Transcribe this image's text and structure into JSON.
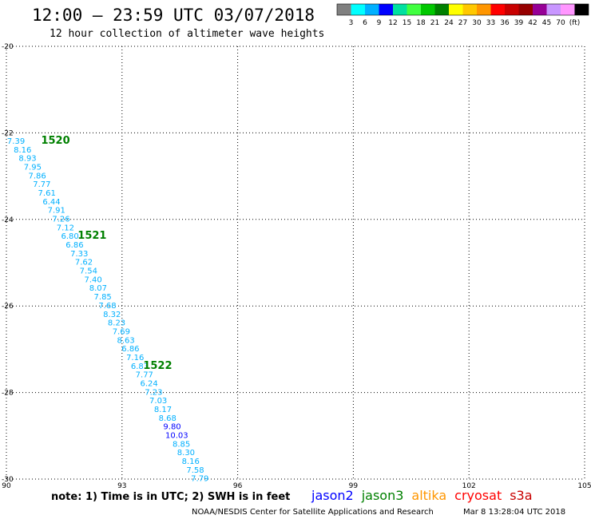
{
  "header": {
    "title": "12:00 – 23:59 UTC 03/07/2018",
    "subtitle": "12 hour collection of altimeter wave heights"
  },
  "colorbar": {
    "colors": [
      "#808080",
      "#00ffff",
      "#00b0ff",
      "#0000ff",
      "#00e0a0",
      "#40ff40",
      "#00c800",
      "#008000",
      "#ffff00",
      "#ffc800",
      "#ff9600",
      "#ff0000",
      "#c80000",
      "#960000",
      "#960096",
      "#c896ff",
      "#ff96ff",
      "#000000"
    ],
    "labels": [
      "3",
      "6",
      "9",
      "12",
      "15",
      "18",
      "21",
      "24",
      "27",
      "30",
      "33",
      "36",
      "39",
      "42",
      "45",
      "70",
      "(ft)"
    ]
  },
  "chart_data": {
    "type": "scatter",
    "title": "12:00 – 23:59 UTC 03/07/2018",
    "subtitle": "12 hour collection of altimeter wave heights",
    "xlim": [
      90,
      105
    ],
    "ylim": [
      -30,
      -20
    ],
    "x_ticks": [
      "90",
      "93",
      "96",
      "99",
      "102",
      "105"
    ],
    "y_ticks": [
      "-20",
      "-22",
      "-24",
      "-26",
      "-28",
      "-30"
    ],
    "grid": true,
    "points": [
      {
        "lon": 90.25,
        "lat": -22.25,
        "value": "7.39",
        "color": "#00b0ff"
      },
      {
        "lon": 90.42,
        "lat": -22.45,
        "value": "8.16",
        "color": "#00b0ff"
      },
      {
        "lon": 90.55,
        "lat": -22.65,
        "value": "8.93",
        "color": "#00b0ff"
      },
      {
        "lon": 90.68,
        "lat": -22.85,
        "value": "7.95",
        "color": "#00b0ff"
      },
      {
        "lon": 90.8,
        "lat": -23.05,
        "value": "7.86",
        "color": "#00b0ff"
      },
      {
        "lon": 90.92,
        "lat": -23.25,
        "value": "7.77",
        "color": "#00b0ff"
      },
      {
        "lon": 91.05,
        "lat": -23.45,
        "value": "7.61",
        "color": "#00b0ff"
      },
      {
        "lon": 91.17,
        "lat": -23.65,
        "value": "6.44",
        "color": "#00b0ff"
      },
      {
        "lon": 91.3,
        "lat": -23.85,
        "value": "7.91",
        "color": "#00b0ff"
      },
      {
        "lon": 91.42,
        "lat": -24.05,
        "value": "7.26",
        "color": "#00b0ff"
      },
      {
        "lon": 91.53,
        "lat": -24.25,
        "value": "7.12",
        "color": "#00b0ff"
      },
      {
        "lon": 91.65,
        "lat": -24.45,
        "value": "6.80",
        "color": "#00b0ff"
      },
      {
        "lon": 91.77,
        "lat": -24.65,
        "value": "6.86",
        "color": "#00b0ff"
      },
      {
        "lon": 91.89,
        "lat": -24.85,
        "value": "7.33",
        "color": "#00b0ff"
      },
      {
        "lon": 92.01,
        "lat": -25.05,
        "value": "7.62",
        "color": "#00b0ff"
      },
      {
        "lon": 92.13,
        "lat": -25.25,
        "value": "7.54",
        "color": "#00b0ff"
      },
      {
        "lon": 92.25,
        "lat": -25.45,
        "value": "7.40",
        "color": "#00b0ff"
      },
      {
        "lon": 92.38,
        "lat": -25.65,
        "value": "8.07",
        "color": "#00b0ff"
      },
      {
        "lon": 92.5,
        "lat": -25.85,
        "value": "7.85",
        "color": "#00b0ff"
      },
      {
        "lon": 92.62,
        "lat": -26.05,
        "value": "7.68",
        "color": "#00b0ff"
      },
      {
        "lon": 92.74,
        "lat": -26.25,
        "value": "8.32",
        "color": "#00b0ff"
      },
      {
        "lon": 92.86,
        "lat": -26.45,
        "value": "8.23",
        "color": "#00b0ff"
      },
      {
        "lon": 92.98,
        "lat": -26.65,
        "value": "7.69",
        "color": "#00b0ff"
      },
      {
        "lon": 93.1,
        "lat": -26.85,
        "value": "8.63",
        "color": "#00b0ff"
      },
      {
        "lon": 93.22,
        "lat": -27.05,
        "value": "6.86",
        "color": "#00b0ff"
      },
      {
        "lon": 93.34,
        "lat": -27.25,
        "value": "7.16",
        "color": "#00b0ff"
      },
      {
        "lon": 93.46,
        "lat": -27.45,
        "value": "6.83",
        "color": "#00b0ff"
      },
      {
        "lon": 93.58,
        "lat": -27.65,
        "value": "7.77",
        "color": "#00b0ff"
      },
      {
        "lon": 93.7,
        "lat": -27.85,
        "value": "6.24",
        "color": "#00b0ff"
      },
      {
        "lon": 93.82,
        "lat": -28.05,
        "value": "7.23",
        "color": "#00b0ff"
      },
      {
        "lon": 93.94,
        "lat": -28.25,
        "value": "7.03",
        "color": "#00b0ff"
      },
      {
        "lon": 94.06,
        "lat": -28.45,
        "value": "8.17",
        "color": "#00b0ff"
      },
      {
        "lon": 94.18,
        "lat": -28.65,
        "value": "8.68",
        "color": "#00b0ff"
      },
      {
        "lon": 94.3,
        "lat": -28.85,
        "value": "9.80",
        "color": "#0000ff"
      },
      {
        "lon": 94.42,
        "lat": -29.05,
        "value": "10.03",
        "color": "#0000ff"
      },
      {
        "lon": 94.54,
        "lat": -29.25,
        "value": "8.85",
        "color": "#00b0ff"
      },
      {
        "lon": 94.66,
        "lat": -29.45,
        "value": "8.30",
        "color": "#00b0ff"
      },
      {
        "lon": 94.78,
        "lat": -29.65,
        "value": "8.16",
        "color": "#00b0ff"
      },
      {
        "lon": 94.9,
        "lat": -29.85,
        "value": "7.58",
        "color": "#00b0ff"
      },
      {
        "lon": 95.02,
        "lat": -30.05,
        "value": "7.79",
        "color": "#00b0ff"
      }
    ],
    "time_labels": [
      {
        "lon": 90.9,
        "lat": -22.25,
        "text": "1520"
      },
      {
        "lon": 91.85,
        "lat": -24.45,
        "text": "1521"
      },
      {
        "lon": 93.55,
        "lat": -27.45,
        "text": "1522"
      }
    ]
  },
  "footer": {
    "note": "note:  1) Time is in UTC;  2) SWH is in feet",
    "satellites": [
      {
        "name": "jason2",
        "color": "#0000ff"
      },
      {
        "name": "jason3",
        "color": "#008000"
      },
      {
        "name": "altika",
        "color": "#ff9600"
      },
      {
        "name": "cryosat",
        "color": "#ff0000"
      },
      {
        "name": "s3a",
        "color": "#c80000"
      }
    ],
    "credit": "NOAA/NESDIS Center for Satellite Applications and Research",
    "timestamp": "Mar  8 13:28:04 UTC 2018"
  }
}
